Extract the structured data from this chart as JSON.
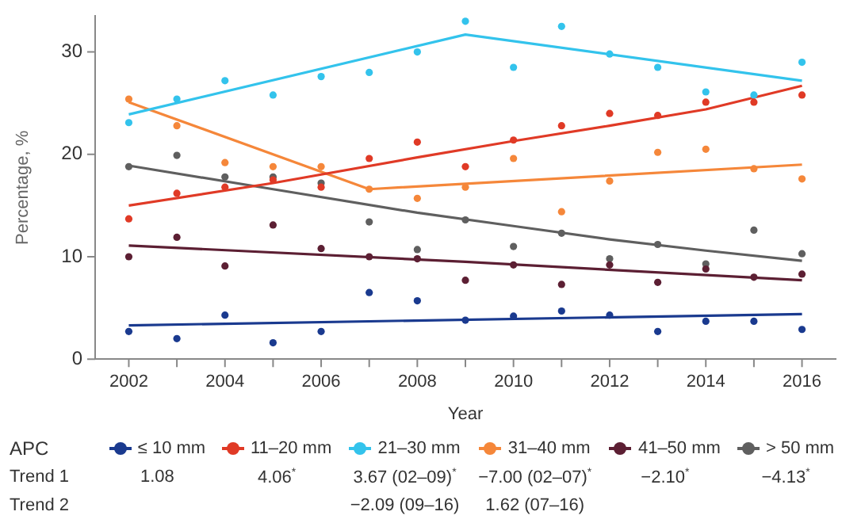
{
  "chart_data": {
    "type": "scatter",
    "xlabel": "Year",
    "ylabel": "Percentage, %",
    "xlim": [
      2001.3,
      2016.7
    ],
    "xticks": [
      2002,
      {
        "value": 2003,
        "label": null
      },
      2004,
      {
        "value": 2005,
        "label": null
      },
      2006,
      {
        "value": 2007,
        "label": null
      },
      2008,
      {
        "value": 2009,
        "label": null
      },
      2010,
      {
        "value": 2011,
        "label": null
      },
      2012,
      {
        "value": 2013,
        "label": null
      },
      2014,
      {
        "value": 2015,
        "label": null
      },
      2016
    ],
    "ylim": [
      0,
      33.5
    ],
    "yticks": [
      0,
      10,
      20,
      30
    ],
    "grid": false,
    "legend": "bottom",
    "legend_title": "APC",
    "marker": "circle",
    "x": [
      2002,
      2003,
      2004,
      2005,
      2006,
      2007,
      2008,
      2009,
      2010,
      2011,
      2012,
      2013,
      2014,
      2015,
      2016
    ],
    "series": [
      {
        "name": "≤ 10 mm",
        "color": "#1a3a8f",
        "values": [
          2.7,
          2.0,
          4.3,
          1.6,
          2.7,
          6.5,
          5.7,
          3.8,
          4.2,
          4.7,
          4.3,
          2.7,
          3.7,
          3.7,
          2.9
        ]
      },
      {
        "name": "11–20 mm",
        "color": "#e03a26",
        "values": [
          13.7,
          16.2,
          16.8,
          17.5,
          16.8,
          19.6,
          21.2,
          18.8,
          21.4,
          22.8,
          24.0,
          23.8,
          25.1,
          25.1,
          25.8
        ]
      },
      {
        "name": "21–30 mm",
        "color": "#33c3ec",
        "values": [
          23.1,
          25.4,
          27.2,
          25.8,
          27.6,
          28.0,
          30.0,
          33.0,
          28.5,
          32.5,
          29.8,
          28.5,
          26.1,
          25.8,
          29.0
        ]
      },
      {
        "name": "31–40 mm",
        "color": "#f5873a",
        "values": [
          25.4,
          22.8,
          19.2,
          18.8,
          18.8,
          16.6,
          15.7,
          16.8,
          19.6,
          14.4,
          17.4,
          20.2,
          20.5,
          18.6,
          17.6
        ]
      },
      {
        "name": "41–50 mm",
        "color": "#5c1f33",
        "values": [
          10.0,
          11.9,
          9.1,
          13.1,
          10.8,
          10.0,
          9.8,
          7.7,
          9.2,
          7.3,
          9.2,
          7.5,
          8.8,
          8.0,
          8.3
        ]
      },
      {
        "name": "> 50 mm",
        "color": "#5f5f5f",
        "values": [
          18.8,
          19.9,
          17.8,
          17.8,
          17.2,
          13.4,
          10.7,
          13.6,
          11.0,
          12.3,
          9.8,
          11.2,
          9.3,
          12.6,
          10.3
        ]
      },
      {
        "type": "line",
        "marker": "none",
        "color": "#1a3a8f",
        "x": [
          2002,
          2016
        ],
        "values": [
          3.3,
          4.4
        ]
      },
      {
        "type": "line",
        "marker": "none",
        "color": "#e03a26",
        "x": [
          2002,
          2005,
          2008,
          2010,
          2012,
          2014,
          2016
        ],
        "values": [
          15.0,
          17.2,
          19.7,
          21.3,
          22.8,
          24.4,
          26.7
        ]
      },
      {
        "type": "line",
        "marker": "none",
        "color": "#33c3ec",
        "x": [
          2002,
          2009,
          2016
        ],
        "values": [
          23.9,
          31.7,
          27.2
        ]
      },
      {
        "type": "line",
        "marker": "none",
        "color": "#f5873a",
        "x": [
          2002,
          2007,
          2016
        ],
        "values": [
          25.1,
          16.6,
          19.0
        ]
      },
      {
        "type": "line",
        "marker": "none",
        "color": "#5c1f33",
        "x": [
          2002,
          2009,
          2016
        ],
        "values": [
          11.1,
          9.5,
          7.7
        ]
      },
      {
        "type": "line",
        "marker": "none",
        "color": "#5f5f5f",
        "x": [
          2002,
          2005,
          2008,
          2010,
          2012,
          2014,
          2016
        ],
        "values": [
          18.9,
          16.6,
          14.3,
          13.0,
          11.7,
          10.6,
          9.6
        ]
      }
    ],
    "annotations": [
      "Trend 1",
      "1.08",
      "4.06$^{*}$",
      "3.67 (02–09)$^{*}$",
      "−7.00 (02–07)$^{*}$",
      "−2.10$^{*}$",
      "−4.13$^{*}$",
      "Trend 2",
      null,
      null,
      "−2.09 (09–16)",
      "1.62 (07–16)",
      null,
      null
    ]
  }
}
